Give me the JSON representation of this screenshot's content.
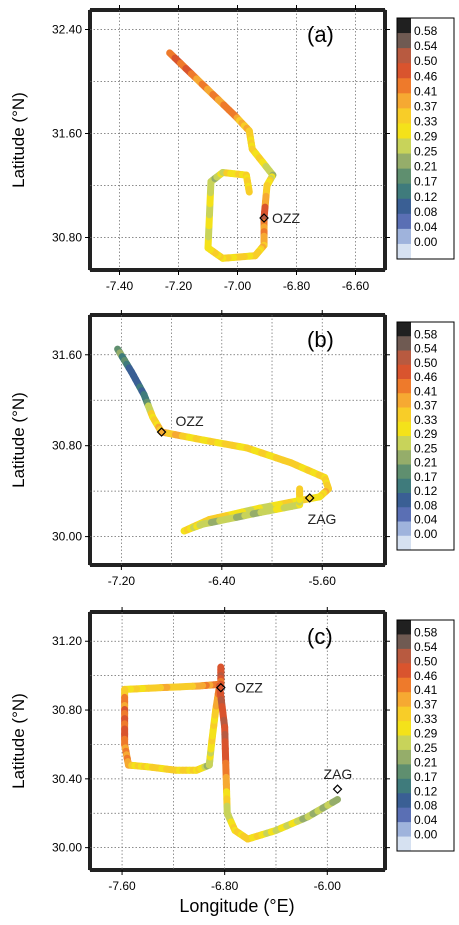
{
  "figure": {
    "ylabel": "Latitude (°N)",
    "xlabel": "Longitude (°E)"
  },
  "colorbar": {
    "tick_labels": [
      "0.58",
      "0.54",
      "0.50",
      "0.46",
      "0.41",
      "0.37",
      "0.33",
      "0.29",
      "0.25",
      "0.21",
      "0.17",
      "0.12",
      "0.08",
      "0.04",
      "0.00"
    ],
    "colors": [
      "#202020",
      "#6f5a52",
      "#b85a40",
      "#d9542e",
      "#ee7a2b",
      "#f6a932",
      "#f8cd28",
      "#f4e21a",
      "#c8d35a",
      "#95ad6a",
      "#5f8f6f",
      "#3f7b7c",
      "#3a5f94",
      "#5a6fb4",
      "#9fb3dc",
      "#d6e1f1"
    ],
    "value_range": [
      0,
      0.58
    ]
  },
  "chart_data": [
    {
      "type": "line",
      "panel_label": "(a)",
      "xlim": [
        -7.5,
        -6.5
      ],
      "ylim": [
        30.55,
        32.55
      ],
      "x_ticks": [
        -7.4,
        -7.2,
        -7.0,
        -6.8,
        -6.6
      ],
      "x_tick_labels": [
        "-7.40",
        "-7.20",
        "-7.00",
        "-6.80",
        "-6.60"
      ],
      "y_ticks": [
        30.8,
        31.6,
        32.4
      ],
      "y_tick_labels": [
        "30.80",
        "31.60",
        "32.40"
      ],
      "stations": [
        {
          "name": "OZZ",
          "lon": -6.91,
          "lat": 30.95
        }
      ],
      "series": [
        {
          "points": [
            [
              -7.23,
              32.22
            ],
            [
              -7.12,
              31.98
            ],
            [
              -7.01,
              31.74
            ],
            [
              -6.96,
              31.62
            ],
            [
              -6.95,
              31.48
            ],
            [
              -6.88,
              31.28
            ],
            [
              -6.9,
              31.2
            ],
            [
              -6.91,
              30.95
            ],
            [
              -6.91,
              30.74
            ],
            [
              -6.94,
              30.66
            ],
            [
              -7.05,
              30.64
            ],
            [
              -7.1,
              30.72
            ],
            [
              -7.09,
              31.23
            ],
            [
              -7.05,
              31.3
            ],
            [
              -6.97,
              31.28
            ],
            [
              -6.96,
              31.15
            ]
          ],
          "values": [
            0.45,
            0.42,
            0.4,
            0.34,
            0.33,
            0.27,
            0.33,
            0.46,
            0.35,
            0.34,
            0.33,
            0.33,
            0.26,
            0.29,
            0.34,
            0.33
          ]
        }
      ]
    },
    {
      "type": "line",
      "panel_label": "(b)",
      "xlim": [
        -7.45,
        -5.1
      ],
      "ylim": [
        29.75,
        31.95
      ],
      "x_ticks": [
        -7.2,
        -6.4,
        -5.6
      ],
      "x_tick_labels": [
        "-7.20",
        "-6.40",
        "-5.60"
      ],
      "y_ticks": [
        30.0,
        30.8,
        31.6
      ],
      "y_tick_labels": [
        "30.00",
        "30.80",
        "31.60"
      ],
      "stations": [
        {
          "name": "OZZ",
          "lon": -6.88,
          "lat": 30.92
        },
        {
          "name": "ZAG",
          "lon": -5.7,
          "lat": 30.34
        }
      ],
      "series": [
        {
          "points": [
            [
              -7.23,
              31.65
            ],
            [
              -7.12,
              31.45
            ],
            [
              -7.02,
              31.25
            ],
            [
              -6.95,
              31.05
            ],
            [
              -6.88,
              30.92
            ],
            [
              -6.55,
              30.85
            ],
            [
              -6.2,
              30.78
            ],
            [
              -5.85,
              30.65
            ],
            [
              -5.58,
              30.52
            ],
            [
              -5.55,
              30.42
            ],
            [
              -5.62,
              30.35
            ],
            [
              -6.1,
              30.25
            ],
            [
              -6.5,
              30.15
            ],
            [
              -6.7,
              30.05
            ],
            [
              -6.55,
              30.11
            ],
            [
              -6.15,
              30.2
            ],
            [
              -5.78,
              30.28
            ],
            [
              -5.78,
              30.42
            ]
          ],
          "values": [
            0.23,
            0.14,
            0.12,
            0.33,
            0.36,
            0.33,
            0.34,
            0.33,
            0.33,
            0.35,
            0.33,
            0.29,
            0.33,
            0.33,
            0.27,
            0.25,
            0.29,
            0.33
          ]
        }
      ]
    },
    {
      "type": "line",
      "panel_label": "(c)",
      "xlim": [
        -7.85,
        -5.55
      ],
      "ylim": [
        29.87,
        31.37
      ],
      "x_ticks": [
        -7.6,
        -6.8,
        -6.0
      ],
      "x_tick_labels": [
        "-7.60",
        "-6.80",
        "-6.00"
      ],
      "y_ticks": [
        30.0,
        30.4,
        30.8,
        31.2
      ],
      "y_tick_labels": [
        "30.00",
        "30.40",
        "30.80",
        "31.20"
      ],
      "stations": [
        {
          "name": "OZZ",
          "lon": -6.83,
          "lat": 30.93
        },
        {
          "name": "ZAG",
          "lon": -5.92,
          "lat": 30.34
        }
      ],
      "series": [
        {
          "points": [
            [
              -6.83,
              31.05
            ],
            [
              -6.83,
              30.95
            ],
            [
              -7.0,
              30.94
            ],
            [
              -7.3,
              30.93
            ],
            [
              -7.58,
              30.92
            ],
            [
              -7.58,
              30.78
            ],
            [
              -7.58,
              30.6
            ],
            [
              -7.55,
              30.48
            ],
            [
              -7.4,
              30.47
            ],
            [
              -7.18,
              30.45
            ],
            [
              -7.02,
              30.45
            ],
            [
              -6.92,
              30.48
            ],
            [
              -6.9,
              30.62
            ],
            [
              -6.87,
              30.8
            ],
            [
              -6.84,
              30.94
            ],
            [
              -6.8,
              30.7
            ],
            [
              -6.79,
              30.45
            ],
            [
              -6.78,
              30.2
            ],
            [
              -6.72,
              30.1
            ],
            [
              -6.62,
              30.05
            ],
            [
              -6.4,
              30.1
            ],
            [
              -6.15,
              30.18
            ],
            [
              -5.92,
              30.28
            ]
          ],
          "values": [
            0.46,
            0.45,
            0.36,
            0.34,
            0.33,
            0.45,
            0.44,
            0.36,
            0.33,
            0.34,
            0.33,
            0.27,
            0.31,
            0.33,
            0.44,
            0.47,
            0.43,
            0.26,
            0.33,
            0.35,
            0.3,
            0.27,
            0.24
          ]
        }
      ]
    }
  ]
}
